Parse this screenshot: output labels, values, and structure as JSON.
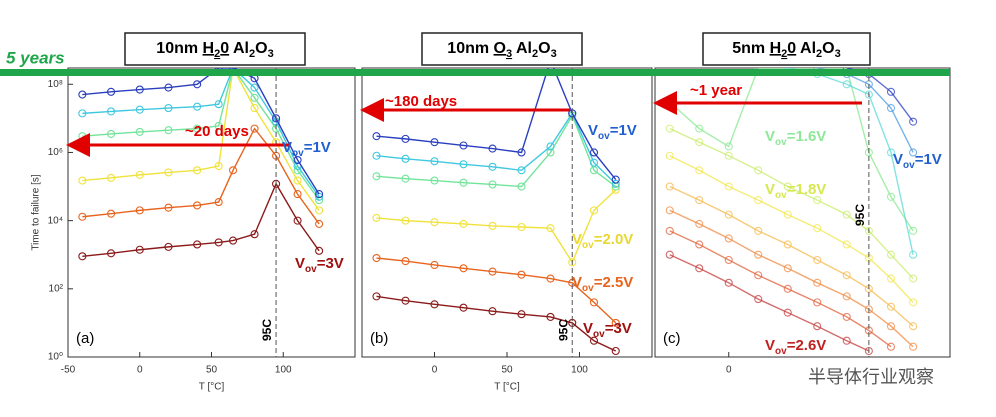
{
  "banner": {
    "text": "5 years",
    "color": "#1fa64a"
  },
  "watermark": "半导体行业观察",
  "chart_data": [
    {
      "type": "line",
      "panel_label": "(a)",
      "yscale": "log",
      "title": [
        {
          "text": "10nm "
        },
        {
          "text": "H",
          "u": true
        },
        {
          "text": "2",
          "u": true,
          "sub": true
        },
        {
          "text": "0",
          "u": true
        },
        {
          "text": " Al"
        },
        {
          "text": "2",
          "sub": true
        },
        {
          "text": "O"
        },
        {
          "text": "3",
          "sub": true
        }
      ],
      "ylabel": "Time to failure [s]",
      "xlabel": "T [°C]",
      "xlim": [
        -50,
        150
      ],
      "ylim": [
        1,
        300000000
      ],
      "xticks": [
        -50,
        0,
        50,
        100
      ],
      "yticks": [
        {
          "value": 1,
          "label": "10⁰"
        },
        {
          "value": 100,
          "label": "10²"
        },
        {
          "value": 10000,
          "label": "10⁴"
        },
        {
          "value": 1000000,
          "label": "10⁶"
        },
        {
          "value": 100000000,
          "label": "10⁸"
        }
      ],
      "ref_line": {
        "x": 95,
        "label": "95C"
      },
      "x": [
        -40,
        -20,
        0,
        20,
        40,
        55,
        65,
        80,
        95,
        110,
        125
      ],
      "series": [
        {
          "color": "#8b1a1a",
          "values": [
            900,
            1100,
            1400,
            1700,
            2000,
            2300,
            2600,
            4000,
            120000,
            10000,
            1300
          ]
        },
        {
          "color": "#e8641e",
          "values": [
            13000,
            16000,
            20000,
            24000,
            28000,
            35000,
            300000,
            5000000,
            800000,
            60000,
            8000
          ]
        },
        {
          "color": "#f0e23c",
          "values": [
            150000,
            180000,
            220000,
            260000,
            300000,
            400000,
            300000000,
            20000000,
            2000000,
            150000,
            20000
          ]
        },
        {
          "color": "#72e49a",
          "values": [
            3000000,
            3500000,
            4000000,
            4500000,
            5000000,
            6000000,
            300000000,
            40000000,
            5000000,
            300000,
            40000
          ]
        },
        {
          "color": "#3fc8e0",
          "values": [
            14000000,
            16000000,
            18000000,
            20000000,
            22000000,
            26000000,
            300000000,
            80000000,
            8000000,
            400000,
            50000
          ]
        },
        {
          "color": "#2a3fbf",
          "values": [
            50000000,
            60000000,
            70000000,
            80000000,
            100000000,
            300000000,
            300000000,
            150000000,
            10000000,
            600000,
            60000
          ]
        }
      ],
      "arrow_label": {
        "text": "~20 days",
        "color": "#e00000"
      },
      "annotations": [
        {
          "main": "V",
          "sub": "ov",
          "rest": "=1V",
          "color": "#1f5fd0"
        },
        {
          "main": "V",
          "sub": "ov",
          "rest": "=3V",
          "color": "#a01010"
        }
      ]
    },
    {
      "type": "line",
      "panel_label": "(b)",
      "yscale": "log",
      "title": [
        {
          "text": "10nm "
        },
        {
          "text": "O",
          "u": true
        },
        {
          "text": "3",
          "u": true,
          "sub": true
        },
        {
          "text": " Al"
        },
        {
          "text": "2",
          "sub": true
        },
        {
          "text": "O"
        },
        {
          "text": "3",
          "sub": true
        }
      ],
      "xlabel": "T [°C]",
      "xlim": [
        -50,
        150
      ],
      "ylim": [
        1,
        300000000
      ],
      "xticks": [
        0,
        50,
        100
      ],
      "ref_line": {
        "x": 95,
        "label": "95C"
      },
      "x": [
        -40,
        -20,
        0,
        20,
        40,
        60,
        80,
        95,
        110,
        125
      ],
      "series": [
        {
          "color": "#8b1a1a",
          "values": [
            60,
            45,
            35,
            28,
            22,
            18,
            15,
            10,
            3,
            1.5
          ]
        },
        {
          "color": "#e8641e",
          "values": [
            800,
            650,
            500,
            400,
            320,
            260,
            200,
            150,
            40,
            10
          ]
        },
        {
          "color": "#f0e23c",
          "values": [
            12000,
            10000,
            9000,
            8000,
            7000,
            6500,
            6000,
            600,
            20000,
            80000
          ]
        },
        {
          "color": "#72e49a",
          "values": [
            200000,
            170000,
            150000,
            130000,
            115000,
            100000,
            1000000,
            12000000,
            300000,
            100000
          ]
        },
        {
          "color": "#3fc8e0",
          "values": [
            800000,
            650000,
            550000,
            450000,
            380000,
            300000,
            1500000,
            14000000,
            500000,
            120000
          ]
        },
        {
          "color": "#2a3fbf",
          "values": [
            3000000,
            2500000,
            2000000,
            1600000,
            1300000,
            1000000,
            500000000,
            14000000,
            1000000,
            160000
          ]
        }
      ],
      "arrow_label": {
        "text": "~180 days",
        "color": "#e00000"
      },
      "annotations": [
        {
          "main": "V",
          "sub": "ov",
          "rest": "=1V",
          "color": "#1f5fd0"
        },
        {
          "main": "V",
          "sub": "ov",
          "rest": "=2.0V",
          "color": "#e8d830"
        },
        {
          "main": "V",
          "sub": "ov",
          "rest": "=2.5V",
          "color": "#e8641e"
        },
        {
          "main": "V",
          "sub": "ov",
          "rest": "=3V",
          "color": "#a01010"
        }
      ]
    },
    {
      "type": "line",
      "panel_label": "(c)",
      "yscale": "log",
      "title": [
        {
          "text": "5nm "
        },
        {
          "text": "H",
          "u": true
        },
        {
          "text": "2",
          "u": true,
          "sub": true
        },
        {
          "text": "0",
          "u": true
        },
        {
          "text": " Al"
        },
        {
          "text": "2",
          "sub": true
        },
        {
          "text": "O"
        },
        {
          "text": "3",
          "sub": true
        }
      ],
      "xlim": [
        -50,
        150
      ],
      "ylim": [
        1,
        300000000
      ],
      "xticks": [
        0
      ],
      "ref_line": {
        "x": 95,
        "label": "95C"
      },
      "x": [
        -40,
        -20,
        0,
        20,
        40,
        60,
        80,
        95,
        110,
        125
      ],
      "series": [
        {
          "color": "#c43a3a",
          "values": [
            1000,
            400,
            150,
            50,
            20,
            8,
            3,
            1.5,
            null,
            null
          ]
        },
        {
          "color": "#e0603a",
          "values": [
            5000,
            2000,
            700,
            250,
            100,
            40,
            15,
            6,
            2,
            null
          ]
        },
        {
          "color": "#f08a40",
          "values": [
            20000,
            8000,
            3000,
            1000,
            400,
            150,
            60,
            25,
            8,
            2
          ]
        },
        {
          "color": "#f5b84a",
          "values": [
            100000,
            40000,
            15000,
            5000,
            2000,
            700,
            250,
            100,
            30,
            8
          ]
        },
        {
          "color": "#f2e64a",
          "values": [
            800000,
            300000,
            100000,
            40000,
            15000,
            6000,
            2000,
            800,
            200,
            40
          ]
        },
        {
          "color": "#c8ec6a",
          "values": [
            5000000,
            2000000,
            800000,
            300000,
            100000,
            40000,
            15000,
            5000,
            1000,
            200
          ]
        },
        {
          "color": "#86e88e",
          "values": [
            30000000,
            5000000,
            1500000,
            300000000,
            300000000,
            300000000,
            300000000,
            1000000,
            50000,
            5000
          ]
        },
        {
          "color": "#5ad8d8",
          "values": [
            null,
            null,
            null,
            null,
            300000000,
            200000000,
            100000000,
            50000000,
            1000000,
            1000
          ]
        },
        {
          "color": "#4a9ae0",
          "values": [
            null,
            null,
            null,
            null,
            null,
            300000000,
            200000000,
            100000000,
            20000000,
            1000000
          ]
        },
        {
          "color": "#2a3fbf",
          "values": [
            null,
            null,
            null,
            null,
            null,
            null,
            300000000,
            200000000,
            60000000,
            8000000
          ]
        }
      ],
      "arrow_label": {
        "text": "~1 year",
        "color": "#e00000"
      },
      "annotations": [
        {
          "main": "V",
          "sub": "ov",
          "rest": "=1.6V",
          "color": "#8ee89a"
        },
        {
          "main": "V",
          "sub": "ov",
          "rest": "=1.8V",
          "color": "#d6e850"
        },
        {
          "main": "V",
          "sub": "ov",
          "rest": "=2.6V",
          "color": "#c02020"
        },
        {
          "main": "V",
          "sub": "ov",
          "rest": "=1V",
          "color": "#1f5fd0"
        }
      ]
    }
  ]
}
